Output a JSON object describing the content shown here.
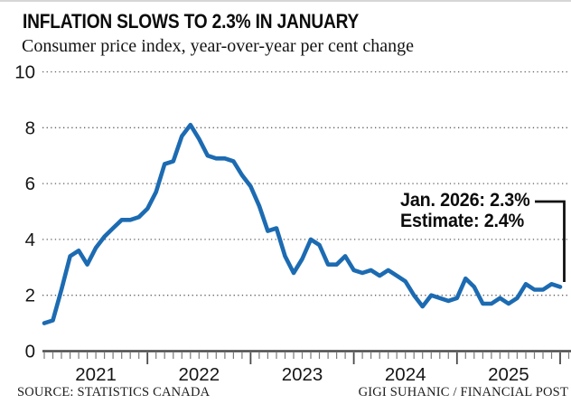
{
  "header": {
    "title": "INFLATION SLOWS TO 2.3% IN JANUARY",
    "subtitle": "Consumer price index, year-over-year per cent change"
  },
  "annotation": {
    "line1": "Jan. 2026: 2.3%",
    "line2": "Estimate: 2.4%"
  },
  "footer": {
    "source": "SOURCE: STATISTICS CANADA",
    "credit": "GIGI SUHANIC / FINANCIAL POST"
  },
  "colors": {
    "line": "#1c6bb2",
    "grid": "#5f5f5f",
    "axis": "#4a4a4a",
    "tick_minor": "#7a7a7a",
    "tick_major": "#4a4a4a",
    "label": "#161616",
    "callout": "#111111",
    "background": "#ffffff"
  },
  "chart_data": {
    "type": "line",
    "title": "INFLATION SLOWS TO 2.3% IN JANUARY",
    "subtitle": "Consumer price index, year-over-year per cent change",
    "ylabel": "per cent change, year-over-year",
    "ylim": [
      0,
      10
    ],
    "yticks": [
      0,
      2,
      4,
      6,
      8,
      10
    ],
    "grid": "dotted-horizontal",
    "x_start": "2021-01",
    "x_end": "2026-01",
    "x_year_labels": [
      "2021",
      "2022",
      "2023",
      "2024",
      "2025"
    ],
    "series": [
      {
        "name": "Consumer price index, year-over-year per cent change",
        "monthly_values": [
          1.0,
          1.1,
          2.2,
          3.4,
          3.6,
          3.1,
          3.7,
          4.1,
          4.4,
          4.7,
          4.7,
          4.8,
          5.1,
          5.7,
          6.7,
          6.8,
          7.7,
          8.1,
          7.6,
          7.0,
          6.9,
          6.9,
          6.8,
          6.3,
          5.9,
          5.2,
          4.3,
          4.4,
          3.4,
          2.8,
          3.3,
          4.0,
          3.8,
          3.1,
          3.1,
          3.4,
          2.9,
          2.8,
          2.9,
          2.7,
          2.9,
          2.7,
          2.5,
          2.0,
          1.6,
          2.0,
          1.9,
          1.8,
          1.9,
          2.6,
          2.3,
          1.7,
          1.7,
          1.9,
          1.7,
          1.9,
          2.4,
          2.2,
          2.2,
          2.4,
          2.3
        ]
      }
    ],
    "annotation": {
      "label": "Jan. 2026: 2.3%",
      "estimate": "Estimate: 2.4%",
      "point": {
        "x": "2026-01",
        "y": 2.3
      }
    },
    "legend": "none"
  }
}
